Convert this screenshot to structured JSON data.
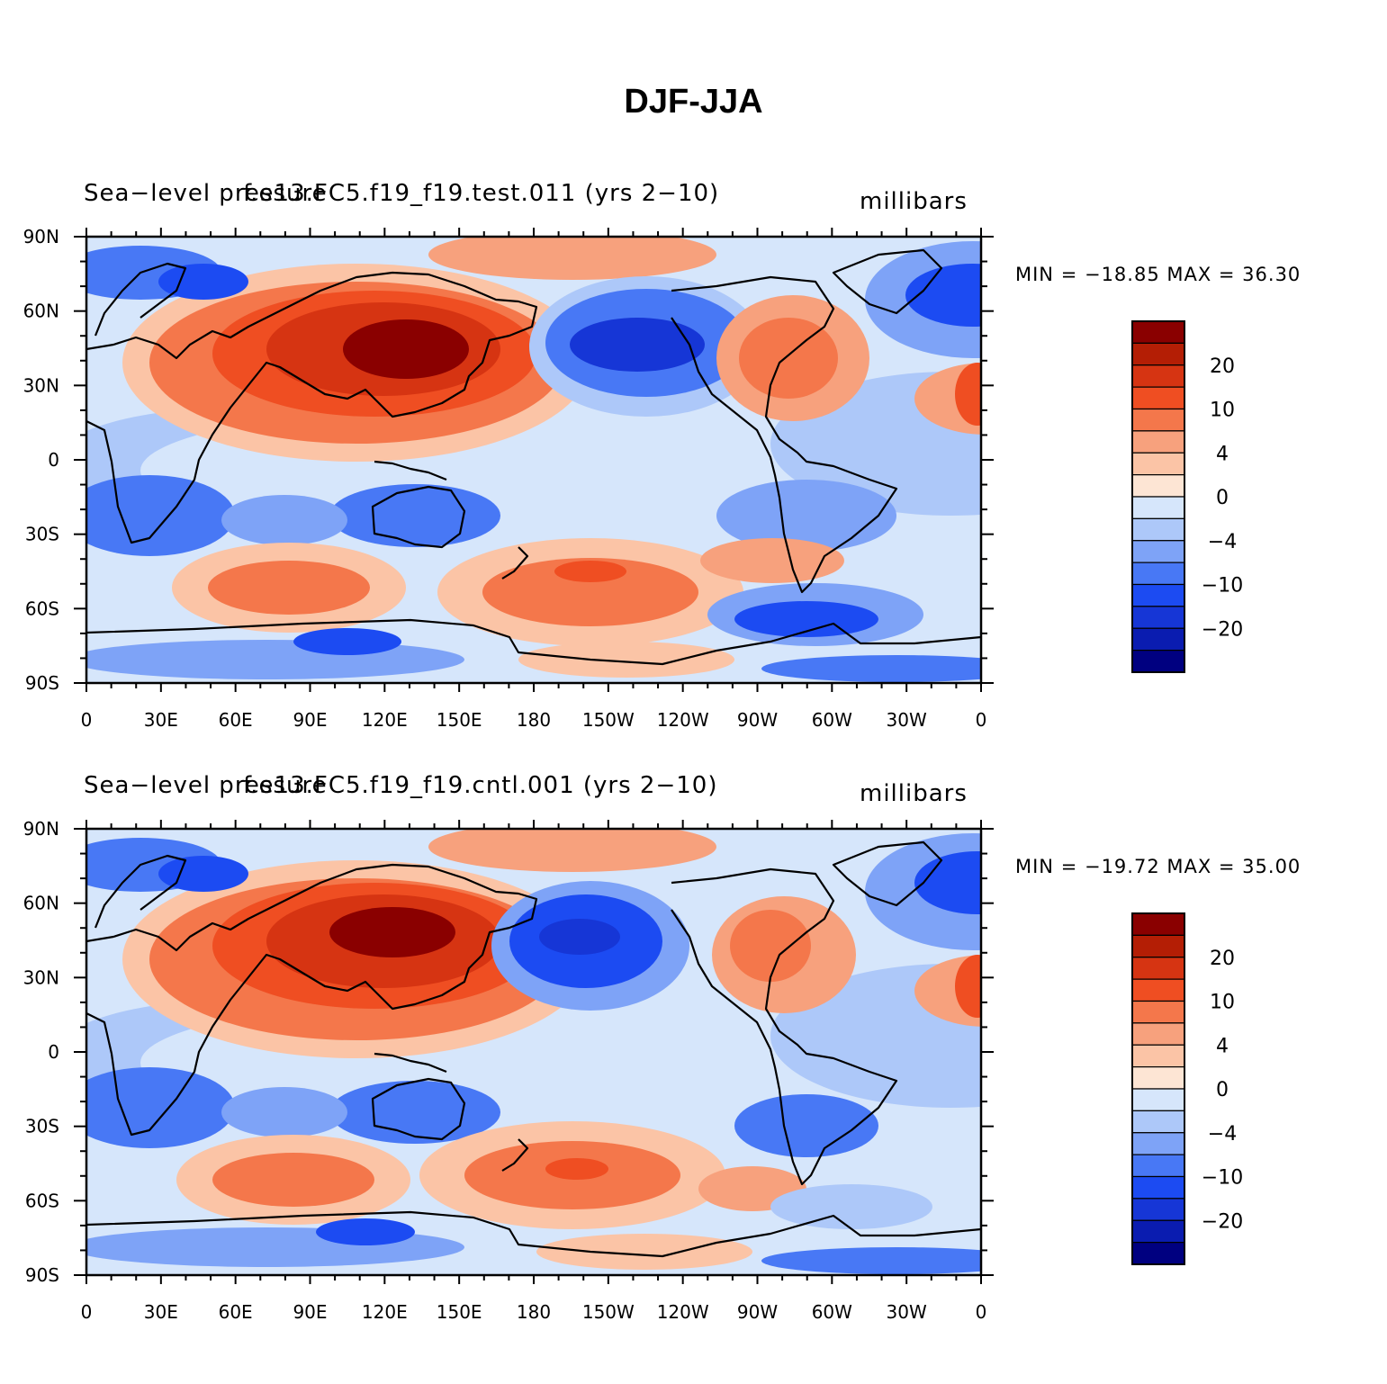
{
  "title": "DJF-JJA",
  "colors": {
    "scale": [
      "#000080",
      "#0a1cb0",
      "#1636d6",
      "#1c4bf2",
      "#4878f5",
      "#7ea3f7",
      "#adc8f9",
      "#d6e6fb",
      "#fde5d4",
      "#fbc4a6",
      "#f7a17d",
      "#f4774b",
      "#ef4e22",
      "#d63412",
      "#b41e05",
      "#8a0000"
    ]
  },
  "colorbar": {
    "labels": [
      "20",
      "10",
      "4",
      "0",
      "−4",
      "−10",
      "−20"
    ]
  },
  "axes": {
    "x_ticks": [
      "0",
      "30E",
      "60E",
      "90E",
      "120E",
      "150E",
      "180",
      "150W",
      "120W",
      "90W",
      "60W",
      "30W",
      "0"
    ],
    "y_ticks": [
      "90N",
      "60N",
      "30N",
      "0",
      "30S",
      "60S",
      "90S"
    ]
  },
  "panels": [
    {
      "left_label": "Sea−level pressure",
      "center_label": "f.e13.FC5.f19_f19.test.011 (yrs 2−10)",
      "right_label": "millibars",
      "min_max": "MIN = −18.85  MAX =   36.30"
    },
    {
      "left_label": "Sea−level pressure",
      "center_label": "f.e13.FC5.f19_f19.cntl.001 (yrs 2−10)",
      "right_label": "millibars",
      "min_max": "MIN = −19.72  MAX =   35.00"
    }
  ]
}
